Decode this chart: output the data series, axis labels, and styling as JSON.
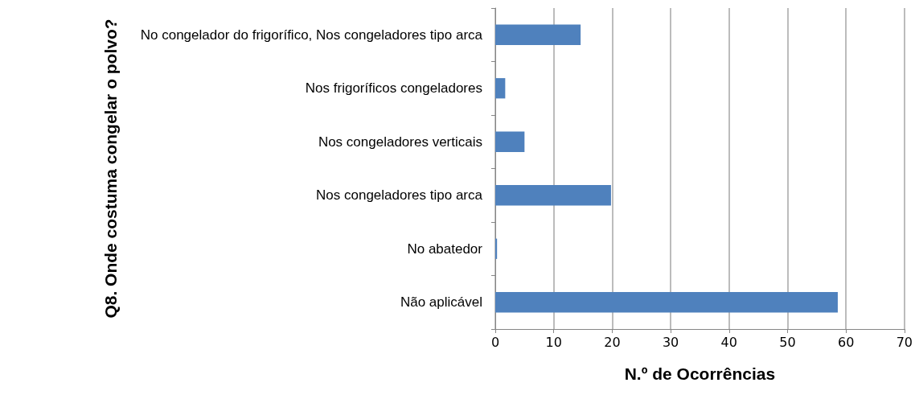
{
  "chart_data": {
    "type": "bar",
    "orientation": "horizontal",
    "categories": [
      "No congelador do frigorífico, Nos congeladores tipo arca",
      "Nos frigoríficos congeladores",
      "Nos congeladores verticais",
      "Nos congeladores tipo arca",
      "No abatedor",
      "Não aplicável"
    ],
    "values": [
      14.6,
      1.7,
      5,
      19.8,
      0.3,
      58.6
    ],
    "color": "#4f81bd",
    "xlim": [
      0,
      70
    ],
    "xticks": [
      0,
      10,
      20,
      30,
      40,
      50,
      60,
      70
    ],
    "grid": "x",
    "xlabel": "N.º de Ocorrências",
    "ylabel": "Q8. Onde costuma congelar o polvo?"
  }
}
